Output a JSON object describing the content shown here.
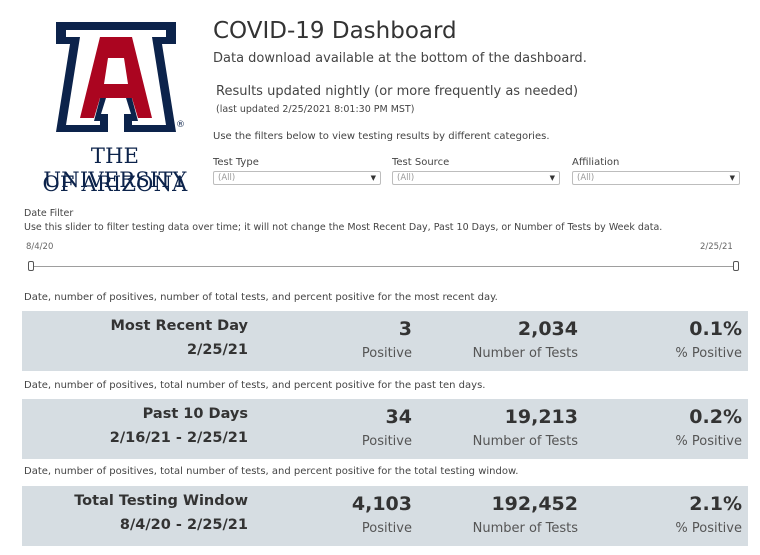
{
  "logo": {
    "mark_letter": "A",
    "line1": "THE UNIVERSITY",
    "line2": "OF ARIZONA",
    "registered": "®",
    "colors": {
      "navy": "#0c234b",
      "red": "#ab0520"
    }
  },
  "header": {
    "title": "COVID-19 Dashboard",
    "subtitle": "Data download available at the bottom of the dashboard.",
    "updated": "Results updated nightly (or more frequently as needed)",
    "last_updated": "(last updated 2/25/2021 8:01:30 PM MST)",
    "filters_help": "Use the filters below to view testing results by different categories."
  },
  "filters": [
    {
      "label": "Test Type",
      "value": "(All)"
    },
    {
      "label": "Test Source",
      "value": "(All)"
    },
    {
      "label": "Affiliation",
      "value": "(All)"
    }
  ],
  "date_filter": {
    "label": "Date Filter",
    "help": "Use this slider to filter testing data over time; it will not change the Most Recent Day, Past 10 Days, or Number of Tests by Week data.",
    "start": "8/4/20",
    "end": "2/25/21"
  },
  "sections": [
    {
      "caption": "Date, number of positives, number of total tests, and percent positive for the most recent day.",
      "label": "Most Recent Day",
      "date": "2/25/21",
      "positives": "3",
      "positives_label": "Positive",
      "tests": "2,034",
      "tests_label": "Number of Tests",
      "percent": "0.1%",
      "percent_label": "% Positive"
    },
    {
      "caption": "Date, number of positives, total number of tests, and percent positive for the past ten days.",
      "label": "Past 10 Days",
      "date": "2/16/21 - 2/25/21",
      "positives": "34",
      "positives_label": "Positive",
      "tests": "19,213",
      "tests_label": "Number of Tests",
      "percent": "0.2%",
      "percent_label": "% Positive"
    },
    {
      "caption": "Date, number of positives, total number of tests, and percent positive for the total testing window.",
      "label": "Total Testing Window",
      "date": "8/4/20 - 2/25/21",
      "positives": "4,103",
      "positives_label": "Positive",
      "tests": "192,452",
      "tests_label": "Number of Tests",
      "percent": "2.1%",
      "percent_label": "% Positive"
    }
  ]
}
